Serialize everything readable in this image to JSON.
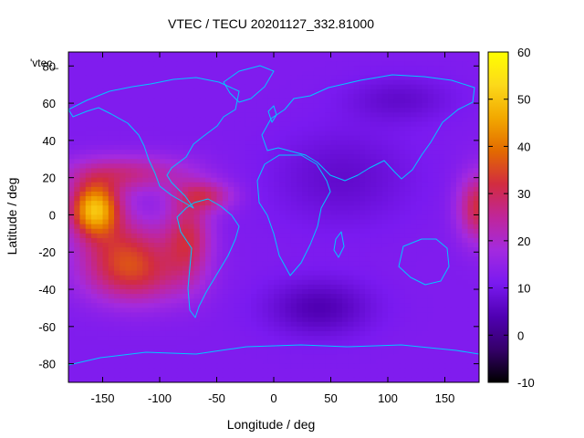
{
  "chart_data": {
    "type": "heatmap",
    "title": "VTEC / TECU 20201127_332.81000",
    "xlabel": "Longitude / deg",
    "ylabel": "Latitude / deg",
    "xlim": [
      -180,
      180
    ],
    "ylim": [
      -90,
      87.5
    ],
    "xticks": [
      -150,
      -100,
      -50,
      0,
      50,
      100,
      150
    ],
    "yticks": [
      80,
      60,
      40,
      20,
      0,
      -20,
      -40,
      -60,
      -80
    ],
    "color_range": [
      -10,
      60
    ],
    "colorbar_ticks": [
      60,
      50,
      40,
      30,
      20,
      10,
      0,
      -10
    ],
    "legend_label": "'vtec_",
    "grid": false,
    "colormap": [
      "#000000",
      "#35006a",
      "#5000b3",
      "#7a1af0",
      "#a32adf",
      "#c0269a",
      "#d22c40",
      "#e36a00",
      "#f2a800",
      "#fcd91a",
      "#ffff00"
    ],
    "background_level": 12,
    "features": [
      {
        "name": "equatorial anomaly (Pacific)",
        "lon": -157,
        "lat": 3,
        "peak": 50
      },
      {
        "name": "equatorial anomaly (Pacific south crest)",
        "lon": -130,
        "lat": -20,
        "peak": 20
      },
      {
        "name": "South America anomaly",
        "lon": -75,
        "lat": -12,
        "peak": 20
      },
      {
        "name": "north crest Caribbean",
        "lon": -60,
        "lat": 10,
        "peak": 16
      },
      {
        "name": "West Pacific edge",
        "lon": 180,
        "lat": 4,
        "peak": 25
      },
      {
        "name": "South Atlantic low",
        "lon": 40,
        "lat": -50,
        "peak": -10
      },
      {
        "name": "Siberia low",
        "lon": 110,
        "lat": 62,
        "peak": -5
      }
    ]
  }
}
